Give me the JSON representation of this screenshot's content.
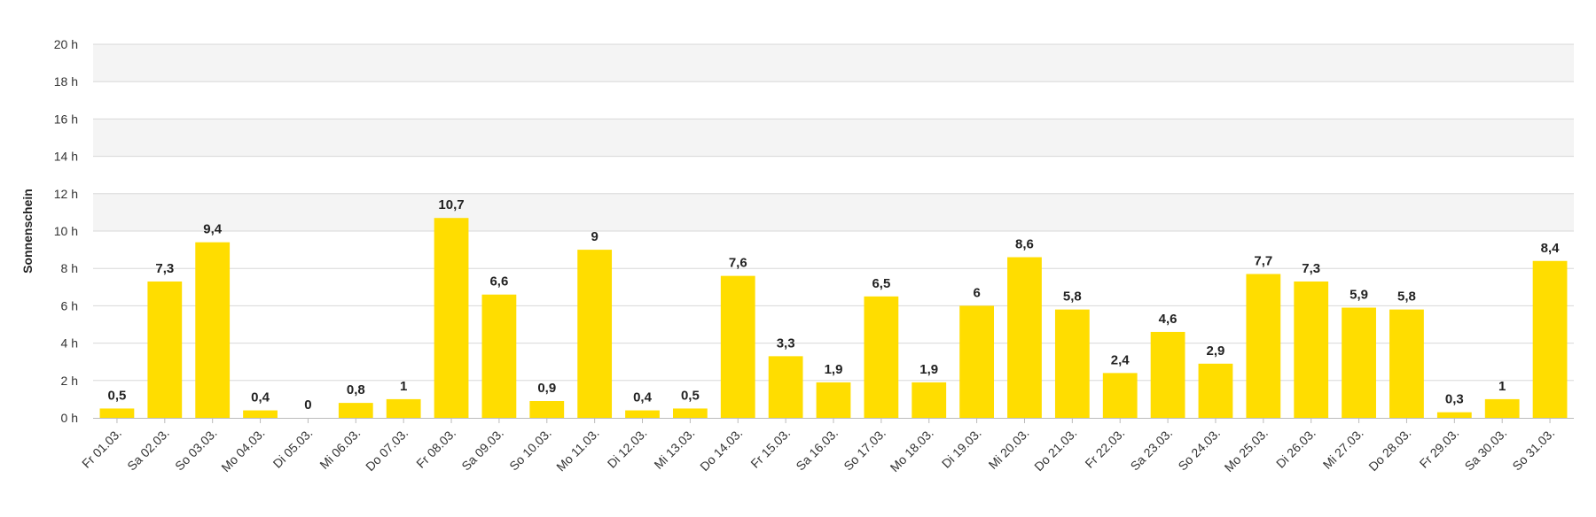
{
  "chart_data": {
    "type": "bar",
    "ylabel": "Sonnenschein",
    "y_unit": "h",
    "ylim": [
      0,
      20
    ],
    "y_ticks": [
      "0 h",
      "2 h",
      "4 h",
      "6 h",
      "8 h",
      "10 h",
      "12 h",
      "14 h",
      "16 h",
      "18 h",
      "20 h"
    ],
    "grid": true,
    "alternating_bands": true,
    "bar_color": "#FFDD00",
    "band_color": "#F4F4F4",
    "grid_color": "#D8D8D8",
    "categories": [
      "Fr 01.03.",
      "Sa 02.03.",
      "So 03.03.",
      "Mo 04.03.",
      "Di 05.03.",
      "Mi 06.03.",
      "Do 07.03.",
      "Fr 08.03.",
      "Sa 09.03.",
      "So 10.03.",
      "Mo 11.03.",
      "Di 12.03.",
      "Mi 13.03.",
      "Do 14.03.",
      "Fr 15.03.",
      "Sa 16.03.",
      "So 17.03.",
      "Mo 18.03.",
      "Di 19.03.",
      "Mi 20.03.",
      "Do 21.03.",
      "Fr 22.03.",
      "Sa 23.03.",
      "So 24.03.",
      "Mo 25.03.",
      "Di 26.03.",
      "Mi 27.03.",
      "Do 28.03.",
      "Fr 29.03.",
      "Sa 30.03.",
      "So 31.03."
    ],
    "values": [
      0.5,
      7.3,
      9.4,
      0.4,
      0,
      0.8,
      1,
      10.7,
      6.6,
      0.9,
      9,
      0.4,
      0.5,
      7.6,
      3.3,
      1.9,
      6.5,
      1.9,
      6,
      8.6,
      5.8,
      2.4,
      4.6,
      2.9,
      7.7,
      7.3,
      5.9,
      5.8,
      0.3,
      1,
      8.4
    ],
    "data_labels": [
      "0,5",
      "7,3",
      "9,4",
      "0,4",
      "0",
      "0,8",
      "1",
      "10,7",
      "6,6",
      "0,9",
      "9",
      "0,4",
      "0,5",
      "7,6",
      "3,3",
      "1,9",
      "6,5",
      "1,9",
      "6",
      "8,6",
      "5,8",
      "2,4",
      "4,6",
      "2,9",
      "7,7",
      "7,3",
      "5,9",
      "5,8",
      "0,3",
      "1",
      "8,4"
    ]
  }
}
